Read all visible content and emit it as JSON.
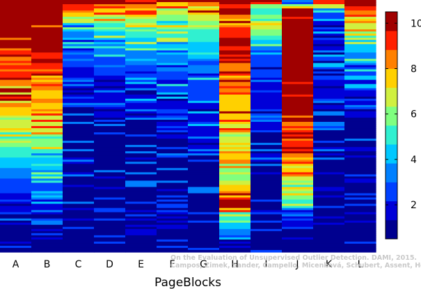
{
  "chart_data": {
    "type": "heatmap",
    "xlabel": "PageBlocks",
    "categories": [
      "A",
      "B",
      "C",
      "D",
      "E",
      "F",
      "G",
      "H",
      "I",
      "J",
      "K",
      "L"
    ],
    "color_scale": {
      "min": 0.5,
      "max": 10.5,
      "ticks": [
        2,
        4,
        6,
        8,
        10
      ],
      "colors": [
        "#00008f",
        "#0000d8",
        "#0040ff",
        "#0080ff",
        "#00c8ff",
        "#30f0d0",
        "#80ff80",
        "#d0f040",
        "#ffd000",
        "#ff8000",
        "#ff2000",
        "#a00000"
      ],
      "placement": "right"
    },
    "columns": [
      {
        "name": "A",
        "segments": [
          [
            0.0,
            10.2
          ],
          [
            0.26,
            9.5
          ],
          [
            0.36,
            8.0
          ],
          [
            0.48,
            7.0
          ],
          [
            0.58,
            5.5
          ],
          [
            0.68,
            3.5
          ],
          [
            0.76,
            2.2
          ],
          [
            0.84,
            1.4
          ],
          [
            1.0,
            0
          ]
        ]
      },
      {
        "name": "B",
        "segments": [
          [
            0.0,
            10.2
          ],
          [
            0.26,
            9.5
          ],
          [
            0.36,
            8.0
          ],
          [
            0.48,
            7.0
          ],
          [
            0.58,
            5.5
          ],
          [
            0.68,
            3.8
          ],
          [
            0.76,
            2.2
          ],
          [
            0.84,
            1.5
          ],
          [
            1.0,
            0
          ]
        ]
      },
      {
        "name": "C",
        "segments": [
          [
            0.0,
            10.3
          ],
          [
            0.04,
            9.0
          ],
          [
            0.08,
            4.5
          ],
          [
            0.18,
            3.0
          ],
          [
            0.32,
            1.6
          ],
          [
            0.55,
            1.0
          ],
          [
            0.8,
            0.9
          ],
          [
            1.0,
            0
          ]
        ]
      },
      {
        "name": "D",
        "segments": [
          [
            0.0,
            10.3
          ],
          [
            0.03,
            9.0
          ],
          [
            0.06,
            6.5
          ],
          [
            0.12,
            4.8
          ],
          [
            0.22,
            3.0
          ],
          [
            0.36,
            1.6
          ],
          [
            0.6,
            1.0
          ],
          [
            1.0,
            0
          ]
        ]
      },
      {
        "name": "E",
        "segments": [
          [
            0.0,
            9.8
          ],
          [
            0.02,
            8.5
          ],
          [
            0.05,
            7.0
          ],
          [
            0.1,
            5.5
          ],
          [
            0.2,
            3.8
          ],
          [
            0.32,
            2.2
          ],
          [
            0.5,
            1.2
          ],
          [
            0.75,
            0.9
          ],
          [
            1.0,
            0
          ]
        ]
      },
      {
        "name": "F",
        "segments": [
          [
            0.0,
            8.3
          ],
          [
            0.02,
            7.3
          ],
          [
            0.06,
            6.2
          ],
          [
            0.12,
            5.0
          ],
          [
            0.2,
            4.0
          ],
          [
            0.3,
            2.8
          ],
          [
            0.45,
            1.6
          ],
          [
            0.7,
            1.0
          ],
          [
            1.0,
            0
          ]
        ]
      },
      {
        "name": "G",
        "segments": [
          [
            0.0,
            9.0
          ],
          [
            0.03,
            8.0
          ],
          [
            0.08,
            6.5
          ],
          [
            0.14,
            5.0
          ],
          [
            0.22,
            4.0
          ],
          [
            0.32,
            2.8
          ],
          [
            0.45,
            1.8
          ],
          [
            0.65,
            1.2
          ],
          [
            1.0,
            0
          ]
        ]
      },
      {
        "name": "H",
        "segments": [
          [
            0.0,
            10.0
          ],
          [
            0.08,
            8.5
          ],
          [
            0.16,
            9.5
          ],
          [
            0.3,
            8.5
          ],
          [
            0.45,
            7.5
          ],
          [
            0.58,
            6.5
          ],
          [
            0.7,
            5.5
          ],
          [
            0.8,
            10.0
          ],
          [
            0.86,
            5.0
          ],
          [
            0.92,
            3.5
          ],
          [
            1.0,
            0
          ]
        ]
      },
      {
        "name": "I",
        "segments": [
          [
            0.0,
            10.3
          ],
          [
            0.03,
            4.5
          ],
          [
            0.1,
            7.0
          ],
          [
            0.2,
            3.0
          ],
          [
            0.35,
            1.8
          ],
          [
            0.6,
            1.1
          ],
          [
            1.0,
            0
          ]
        ]
      },
      {
        "name": "J",
        "segments": [
          [
            0.0,
            1.0
          ],
          [
            0.04,
            10.3
          ],
          [
            0.45,
            10.0
          ],
          [
            0.6,
            9.0
          ],
          [
            0.68,
            7.5
          ],
          [
            0.78,
            6.0
          ],
          [
            0.86,
            2.0
          ],
          [
            0.92,
            1.2
          ],
          [
            1.0,
            0
          ]
        ]
      },
      {
        "name": "K",
        "segments": [
          [
            0.0,
            10.0
          ],
          [
            0.04,
            3.0
          ],
          [
            0.1,
            1.6
          ],
          [
            0.28,
            2.5
          ],
          [
            0.4,
            1.4
          ],
          [
            0.6,
            1.0
          ],
          [
            1.0,
            0
          ]
        ]
      },
      {
        "name": "L",
        "segments": [
          [
            0.0,
            10.3
          ],
          [
            0.1,
            7.0
          ],
          [
            0.16,
            4.5
          ],
          [
            0.26,
            3.0
          ],
          [
            0.36,
            1.6
          ],
          [
            0.6,
            1.0
          ],
          [
            1.0,
            0
          ]
        ]
      }
    ]
  },
  "credit": {
    "line1": "On the Evaluation of Unsupervised Outlier Detection. DAMI, 2015.",
    "line2": "Campos, Zimek, Sander, Campello, Micenková, Schubert, Assent, Houle"
  }
}
